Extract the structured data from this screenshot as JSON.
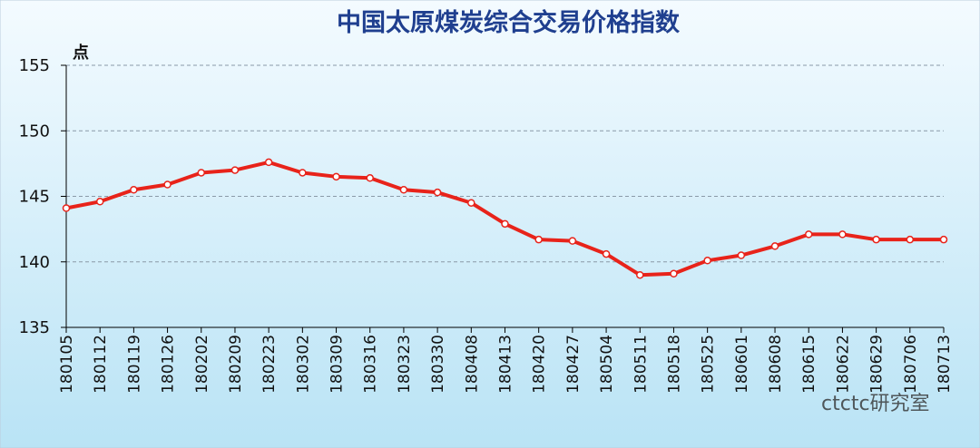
{
  "chart_data": {
    "type": "line",
    "title": "中国太原煤炭综合交易价格指数",
    "y_label": "点",
    "watermark": "ctctc研究室",
    "categories": [
      "180105",
      "180112",
      "180119",
      "180126",
      "180202",
      "180209",
      "180223",
      "180302",
      "180309",
      "180316",
      "180323",
      "180330",
      "180408",
      "180413",
      "180420",
      "180427",
      "180504",
      "180511",
      "180518",
      "180525",
      "180601",
      "180608",
      "180615",
      "180622",
      "180629",
      "180706",
      "180713"
    ],
    "values": [
      144.1,
      144.6,
      145.5,
      145.9,
      146.8,
      147.0,
      147.6,
      146.8,
      146.5,
      146.4,
      145.5,
      145.3,
      144.5,
      142.9,
      141.7,
      141.6,
      140.6,
      139.0,
      139.1,
      140.1,
      140.5,
      141.2,
      142.1,
      142.1,
      141.7,
      141.7,
      141.7
    ],
    "color": "#e8231a",
    "ylim": [
      135,
      155
    ],
    "yticks": [
      135,
      140,
      145,
      150,
      155
    ],
    "grid": true
  }
}
